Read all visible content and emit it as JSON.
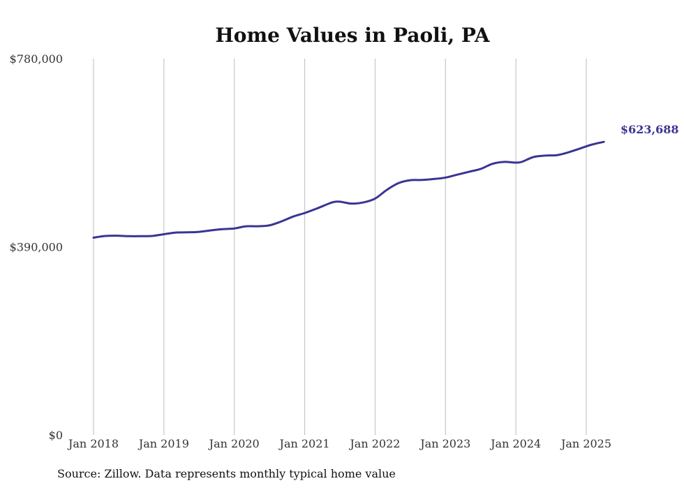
{
  "chart_data": {
    "type": "line",
    "title": "Home Values in Paoli, PA",
    "source": "Source: Zillow. Data represents monthly typical home value",
    "xlabel": "",
    "ylabel": "",
    "ylim": [
      0,
      780000
    ],
    "yticks": [
      0,
      390000,
      780000
    ],
    "ytick_labels": [
      "$0",
      "$390,000",
      "$780,000"
    ],
    "xticks": [
      "2018-01",
      "2019-01",
      "2020-01",
      "2021-01",
      "2022-01",
      "2023-01",
      "2024-01",
      "2025-01"
    ],
    "xtick_labels": [
      "Jan 2018",
      "Jan 2019",
      "Jan 2020",
      "Jan 2021",
      "Jan 2022",
      "Jan 2023",
      "Jan 2024",
      "Jan 2025"
    ],
    "grid": "vertical",
    "line_color": "#3a3494",
    "end_label": "$623,688",
    "series": [
      {
        "x": [
          "2018-01",
          "2018-03",
          "2018-05",
          "2018-07",
          "2018-09",
          "2018-11",
          "2019-01",
          "2019-03",
          "2019-05",
          "2019-07",
          "2019-09",
          "2019-11",
          "2020-01",
          "2020-03",
          "2020-05",
          "2020-07",
          "2020-09",
          "2020-11",
          "2021-01",
          "2021-03",
          "2021-05",
          "2021-06",
          "2021-07",
          "2021-09",
          "2021-11",
          "2022-01",
          "2022-03",
          "2022-05",
          "2022-07",
          "2022-09",
          "2022-11",
          "2023-01",
          "2023-03",
          "2023-05",
          "2023-07",
          "2023-09",
          "2023-11",
          "2024-01",
          "2024-02",
          "2024-04",
          "2024-06",
          "2024-08",
          "2024-10",
          "2024-12",
          "2025-02",
          "2025-04"
        ],
        "values": [
          409000,
          412500,
          413000,
          412000,
          412000,
          412500,
          416000,
          419500,
          420000,
          421000,
          424000,
          426500,
          428000,
          432500,
          432500,
          434500,
          442500,
          452500,
          460000,
          469000,
          479000,
          483000,
          483500,
          479500,
          482000,
          490000,
          508000,
          522000,
          528000,
          528500,
          530500,
          533500,
          539500,
          545500,
          551500,
          562000,
          566000,
          564500,
          566000,
          576000,
          579000,
          580000,
          586000,
          594000,
          602000,
          607500
        ]
      }
    ]
  }
}
